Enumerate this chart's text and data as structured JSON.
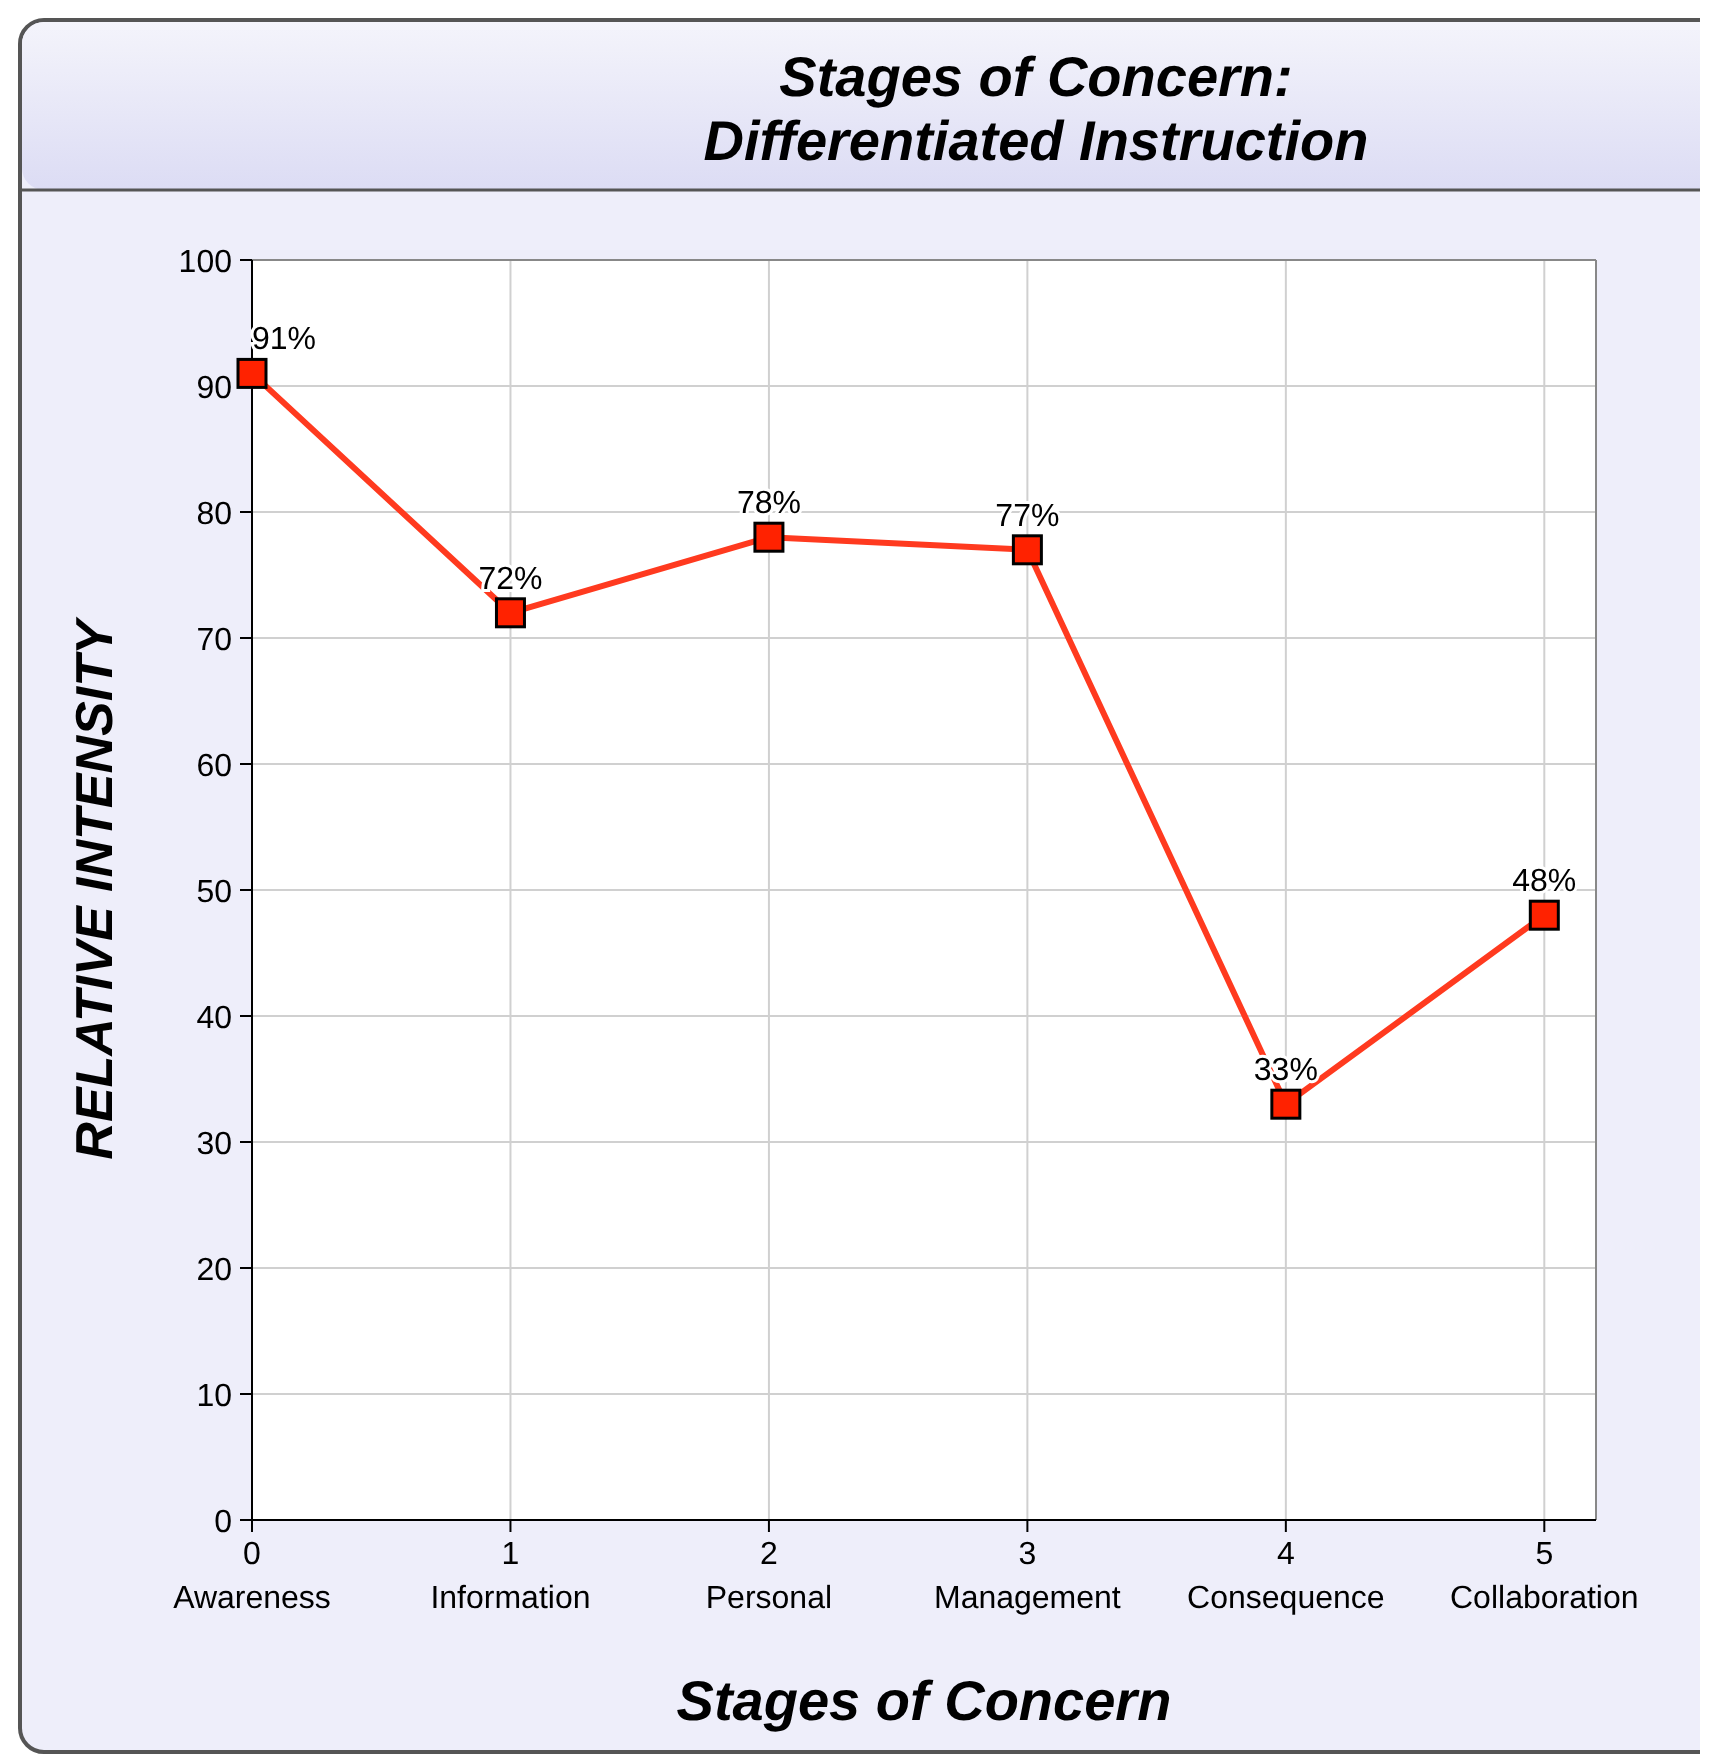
{
  "chart_data": {
    "type": "line",
    "title": "Stages of Concern:\nDifferentiated Instruction",
    "xlabel": "Stages of Concern",
    "ylabel": "RELATIVE INTENSITY",
    "x": [
      0,
      1,
      2,
      3,
      4,
      5
    ],
    "series": [
      {
        "color": "#ff3a1f",
        "values": [
          91,
          72,
          78,
          77,
          33,
          48
        ]
      }
    ],
    "value_labels": [
      "91%",
      "72%",
      "78%",
      "77%",
      "33%",
      "48%"
    ],
    "xlim": [
      0,
      5.2
    ],
    "xticks": [
      {
        "value": 0,
        "label": "0\nAwareness"
      },
      {
        "value": 1,
        "label": "1\nInformation"
      },
      {
        "value": 2,
        "label": "2\nPersonal"
      },
      {
        "value": 3,
        "label": "3\nManagement"
      },
      {
        "value": 4,
        "label": "4\nConsequence"
      },
      {
        "value": 5,
        "label": "5\nCollaboration"
      }
    ],
    "ylim": [
      0,
      100
    ],
    "yticks": [
      0,
      10,
      20,
      30,
      40,
      50,
      60,
      70,
      80,
      90,
      100
    ],
    "grid": true,
    "marker": "square",
    "line_style": "solid"
  }
}
